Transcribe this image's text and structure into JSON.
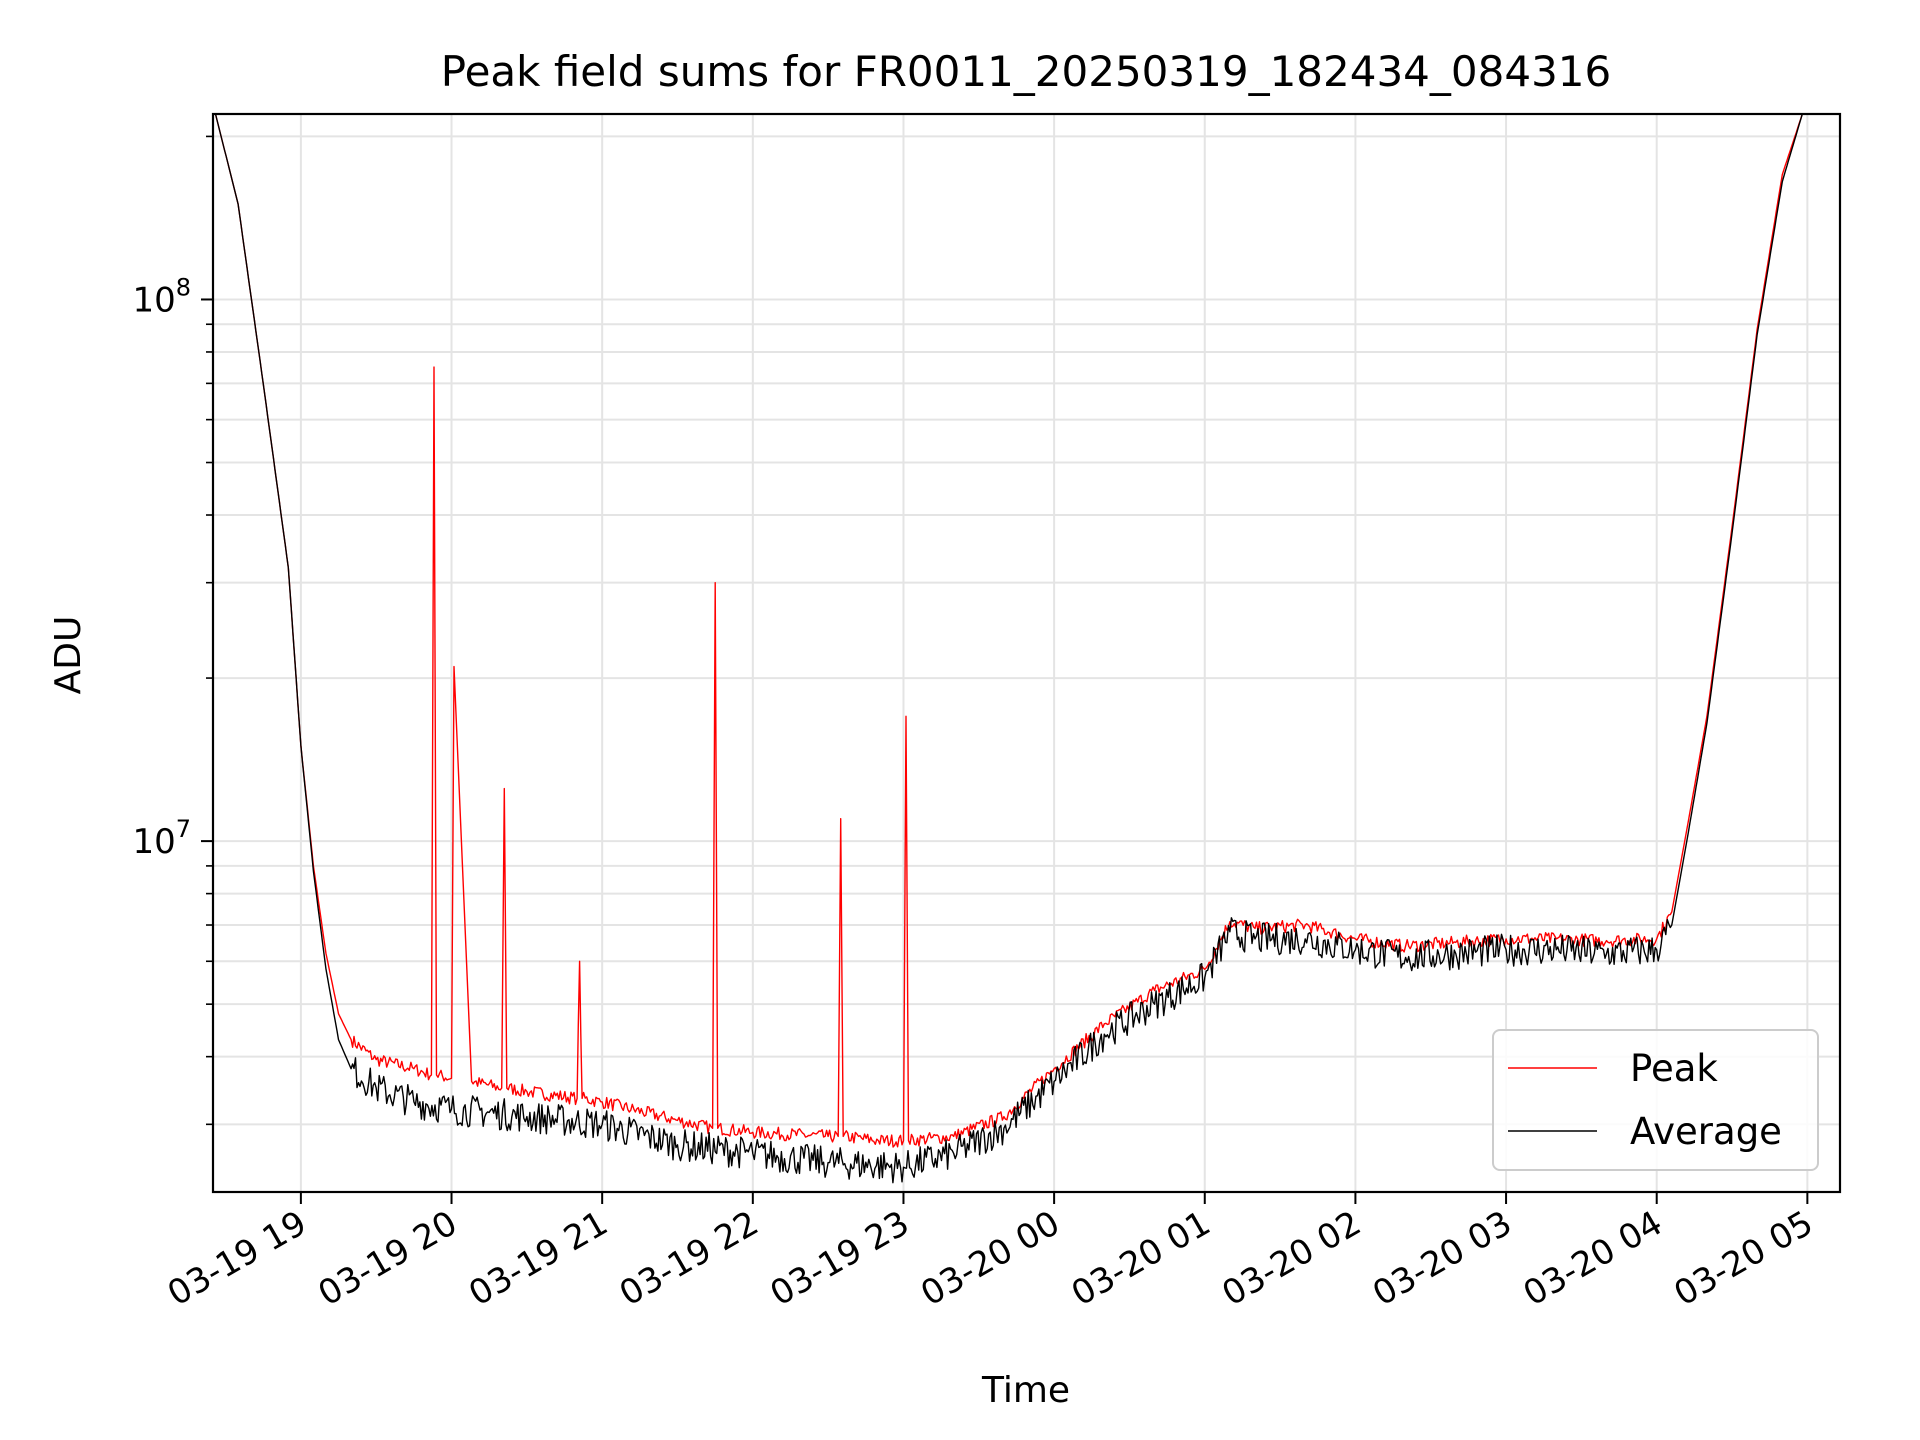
{
  "chart_data": {
    "type": "line",
    "title": "Peak field sums for FR0011_20250319_182434_084316",
    "xlabel": "Time",
    "ylabel": "ADU",
    "y_scale": "log",
    "grid": true,
    "legend_position": "lower-right",
    "xlim": [
      "2025-03-19 18:25",
      "2025-03-20 05:13"
    ],
    "ylim": [
      2250000,
      220000000
    ],
    "x_ticks": [
      {
        "t": "2025-03-19 19:00",
        "label": "03-19 19"
      },
      {
        "t": "2025-03-19 20:00",
        "label": "03-19 20"
      },
      {
        "t": "2025-03-19 21:00",
        "label": "03-19 21"
      },
      {
        "t": "2025-03-19 22:00",
        "label": "03-19 22"
      },
      {
        "t": "2025-03-19 23:00",
        "label": "03-19 23"
      },
      {
        "t": "2025-03-20 00:00",
        "label": "03-20 00"
      },
      {
        "t": "2025-03-20 01:00",
        "label": "03-20 01"
      },
      {
        "t": "2025-03-20 02:00",
        "label": "03-20 02"
      },
      {
        "t": "2025-03-20 03:00",
        "label": "03-20 03"
      },
      {
        "t": "2025-03-20 04:00",
        "label": "03-20 04"
      },
      {
        "t": "2025-03-20 05:00",
        "label": "03-20 05"
      }
    ],
    "y_ticks": [
      {
        "value": 10000000,
        "base": "10",
        "exp": "7"
      },
      {
        "value": 100000000,
        "base": "10",
        "exp": "8"
      }
    ],
    "series": [
      {
        "name": "Peak",
        "color": "#ff0000",
        "x": [
          "2025-03-19 18:26",
          "2025-03-19 18:35",
          "2025-03-19 18:45",
          "2025-03-19 18:55",
          "2025-03-19 19:00",
          "2025-03-19 19:05",
          "2025-03-19 19:10",
          "2025-03-19 19:15",
          "2025-03-19 19:20",
          "2025-03-19 19:30",
          "2025-03-19 19:45",
          "2025-03-19 19:52",
          "2025-03-19 19:53",
          "2025-03-19 19:54",
          "2025-03-19 20:00",
          "2025-03-19 20:01",
          "2025-03-19 20:08",
          "2025-03-19 20:20",
          "2025-03-19 20:21",
          "2025-03-19 20:22",
          "2025-03-19 20:30",
          "2025-03-19 20:50",
          "2025-03-19 20:51",
          "2025-03-19 20:52",
          "2025-03-19 21:00",
          "2025-03-19 21:30",
          "2025-03-19 21:44",
          "2025-03-19 21:45",
          "2025-03-19 21:46",
          "2025-03-19 22:00",
          "2025-03-19 22:30",
          "2025-03-19 22:34",
          "2025-03-19 22:35",
          "2025-03-19 22:36",
          "2025-03-19 22:50",
          "2025-03-19 23:00",
          "2025-03-19 23:01",
          "2025-03-19 23:02",
          "2025-03-19 23:20",
          "2025-03-19 23:40",
          "2025-03-20 00:00",
          "2025-03-20 00:20",
          "2025-03-20 00:40",
          "2025-03-20 01:00",
          "2025-03-20 01:10",
          "2025-03-20 01:20",
          "2025-03-20 01:40",
          "2025-03-20 02:00",
          "2025-03-20 02:20",
          "2025-03-20 02:40",
          "2025-03-20 03:00",
          "2025-03-20 03:20",
          "2025-03-20 03:40",
          "2025-03-20 04:00",
          "2025-03-20 04:06",
          "2025-03-20 04:12",
          "2025-03-20 04:20",
          "2025-03-20 04:30",
          "2025-03-20 04:40",
          "2025-03-20 04:50",
          "2025-03-20 04:58"
        ],
        "y": [
          220000000,
          150000000,
          70000000,
          32000000,
          15000000,
          9000000,
          6200000,
          4800000,
          4300000,
          3950000,
          3800000,
          3700000,
          75000000,
          3700000,
          3650000,
          21000000,
          3600000,
          3500000,
          12500000,
          3500000,
          3450000,
          3350000,
          6000000,
          3350000,
          3300000,
          3050000,
          2950000,
          30000000,
          2950000,
          2900000,
          2850000,
          2850000,
          11000000,
          2850000,
          2800000,
          2800000,
          17000000,
          2800000,
          2850000,
          3100000,
          3800000,
          4600000,
          5300000,
          5800000,
          7100000,
          6900000,
          7000000,
          6600000,
          6400000,
          6500000,
          6600000,
          6600000,
          6550000,
          6600000,
          7400000,
          10500000,
          17000000,
          38000000,
          88000000,
          170000000,
          220000000
        ]
      },
      {
        "name": "Average",
        "color": "#000000",
        "x": [
          "2025-03-19 18:26",
          "2025-03-19 18:35",
          "2025-03-19 18:45",
          "2025-03-19 18:55",
          "2025-03-19 19:00",
          "2025-03-19 19:05",
          "2025-03-19 19:10",
          "2025-03-19 19:15",
          "2025-03-19 19:20",
          "2025-03-19 19:30",
          "2025-03-19 19:45",
          "2025-03-19 20:00",
          "2025-03-19 20:30",
          "2025-03-19 21:00",
          "2025-03-19 21:30",
          "2025-03-19 22:00",
          "2025-03-19 22:30",
          "2025-03-19 23:00",
          "2025-03-19 23:20",
          "2025-03-19 23:40",
          "2025-03-20 00:00",
          "2025-03-20 00:20",
          "2025-03-20 00:40",
          "2025-03-20 01:00",
          "2025-03-20 01:10",
          "2025-03-20 01:20",
          "2025-03-20 01:40",
          "2025-03-20 02:00",
          "2025-03-20 02:20",
          "2025-03-20 02:40",
          "2025-03-20 03:00",
          "2025-03-20 03:20",
          "2025-03-20 03:40",
          "2025-03-20 04:00",
          "2025-03-20 04:06",
          "2025-03-20 04:12",
          "2025-03-20 04:20",
          "2025-03-20 04:30",
          "2025-03-20 04:40",
          "2025-03-20 04:50",
          "2025-03-20 04:58"
        ],
        "y": [
          220000000,
          150000000,
          70000000,
          32000000,
          15000000,
          8800000,
          5800000,
          4300000,
          3800000,
          3500000,
          3300000,
          3200000,
          3100000,
          3000000,
          2750000,
          2650000,
          2550000,
          2500000,
          2650000,
          2950000,
          3600000,
          4400000,
          5000000,
          5600000,
          6800000,
          6600000,
          6600000,
          6300000,
          6100000,
          6200000,
          6300000,
          6300000,
          6200000,
          6300000,
          7000000,
          10000000,
          16500000,
          37000000,
          86000000,
          165000000,
          220000000
        ]
      }
    ]
  }
}
